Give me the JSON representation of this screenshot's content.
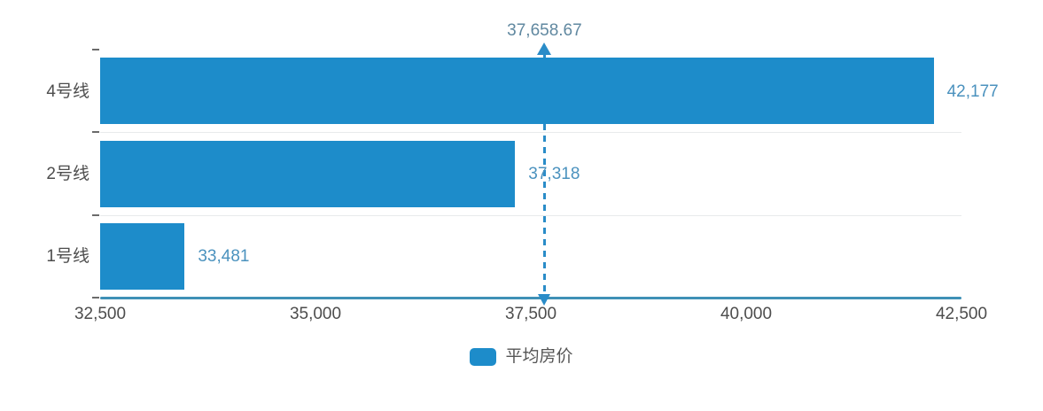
{
  "chart_data": {
    "type": "bar",
    "orientation": "horizontal",
    "categories": [
      "4号线",
      "2号线",
      "1号线"
    ],
    "series": [
      {
        "name": "平均房价",
        "values": [
          42177,
          37318,
          33481
        ],
        "value_labels": [
          "42,177",
          "37,318",
          "33,481"
        ],
        "color": "#1d8cca"
      }
    ],
    "xlim": [
      32500,
      42500
    ],
    "x_ticks": [
      32500,
      35000,
      37500,
      40000,
      42500
    ],
    "x_tick_labels": [
      "32,500",
      "35,000",
      "37,500",
      "40,000",
      "42,500"
    ],
    "average_line": {
      "value": 37658.67,
      "label": "37,658.67",
      "style": "dashed",
      "color": "#2a8cc8"
    },
    "grid": "horizontal category split lines only",
    "legend_position": "bottom",
    "axis_line_color": "#3f90b6",
    "value_label_color": "#4b92be",
    "tick_label_color": "#4d4d4d"
  },
  "legend": {
    "label": "平均房价"
  }
}
